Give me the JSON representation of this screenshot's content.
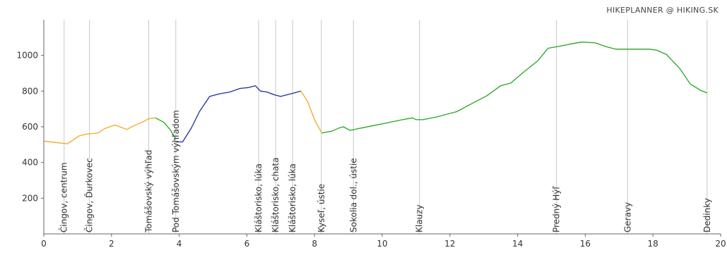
{
  "credit": "HIKEPLANNER @ HIKING.SK",
  "chart_data": {
    "type": "line",
    "title": "",
    "xlabel": "",
    "ylabel": "",
    "xlim": [
      0,
      20
    ],
    "ylim": [
      0,
      1200
    ],
    "x_ticks": [
      0,
      2,
      4,
      6,
      8,
      10,
      12,
      14,
      16,
      18,
      20
    ],
    "y_ticks": [
      200,
      400,
      600,
      800,
      1000
    ],
    "grid": false,
    "legend": "none",
    "colors": {
      "orange": "#f5a623",
      "blue": "#1f2f9e",
      "green": "#22a81f"
    },
    "series": [
      {
        "color": "orange",
        "points": [
          [
            0,
            520
          ],
          [
            0.35,
            512
          ],
          [
            0.7,
            505
          ],
          [
            0.9,
            530
          ],
          [
            1.05,
            550
          ],
          [
            1.3,
            560
          ],
          [
            1.6,
            565
          ],
          [
            1.8,
            590
          ],
          [
            2.1,
            610
          ],
          [
            2.25,
            600
          ],
          [
            2.45,
            585
          ],
          [
            2.65,
            605
          ],
          [
            2.9,
            625
          ],
          [
            3.1,
            645
          ],
          [
            3.3,
            650
          ]
        ]
      },
      {
        "color": "green",
        "points": [
          [
            3.3,
            650
          ],
          [
            3.55,
            625
          ],
          [
            3.75,
            580
          ],
          [
            3.9,
            530
          ]
        ]
      },
      {
        "color": "blue",
        "points": [
          [
            3.9,
            515
          ],
          [
            4.1,
            515
          ],
          [
            4.35,
            590
          ],
          [
            4.6,
            685
          ],
          [
            4.9,
            770
          ],
          [
            5.2,
            785
          ],
          [
            5.5,
            795
          ],
          [
            5.8,
            815
          ],
          [
            6.05,
            820
          ],
          [
            6.25,
            830
          ],
          [
            6.4,
            800
          ],
          [
            6.6,
            795
          ],
          [
            6.8,
            780
          ],
          [
            7.0,
            770
          ],
          [
            7.2,
            780
          ],
          [
            7.4,
            790
          ],
          [
            7.6,
            800
          ]
        ]
      },
      {
        "color": "orange",
        "points": [
          [
            7.6,
            800
          ],
          [
            7.8,
            740
          ],
          [
            8.0,
            640
          ],
          [
            8.2,
            570
          ]
        ]
      },
      {
        "color": "green",
        "points": [
          [
            8.2,
            565
          ],
          [
            8.5,
            575
          ],
          [
            8.75,
            595
          ],
          [
            8.85,
            600
          ],
          [
            9.05,
            580
          ],
          [
            9.3,
            590
          ],
          [
            9.7,
            605
          ],
          [
            10.1,
            620
          ],
          [
            10.6,
            640
          ],
          [
            10.9,
            650
          ],
          [
            11.0,
            640
          ],
          [
            11.2,
            640
          ],
          [
            11.6,
            655
          ],
          [
            12.2,
            685
          ],
          [
            12.6,
            725
          ],
          [
            13.1,
            775
          ],
          [
            13.5,
            830
          ],
          [
            13.8,
            845
          ],
          [
            14.2,
            910
          ],
          [
            14.6,
            970
          ],
          [
            14.9,
            1040
          ],
          [
            15.2,
            1050
          ],
          [
            15.6,
            1065
          ],
          [
            15.9,
            1075
          ],
          [
            16.3,
            1070
          ],
          [
            16.6,
            1050
          ],
          [
            16.9,
            1035
          ],
          [
            17.3,
            1035
          ],
          [
            17.6,
            1035
          ],
          [
            17.9,
            1035
          ],
          [
            18.1,
            1030
          ],
          [
            18.4,
            1005
          ],
          [
            18.8,
            925
          ],
          [
            19.1,
            840
          ],
          [
            19.4,
            805
          ],
          [
            19.6,
            790
          ]
        ]
      }
    ],
    "waypoints": [
      {
        "x": 0.6,
        "label": "Čingov, centrum"
      },
      {
        "x": 1.35,
        "label": "Čingov, Ďurkovec"
      },
      {
        "x": 3.1,
        "label": "Tomášovský výhľad"
      },
      {
        "x": 3.9,
        "label": "Pod Tomášovským výhľadom"
      },
      {
        "x": 6.35,
        "label": "Kláštorisko, lúka"
      },
      {
        "x": 6.85,
        "label": "Kláštorisko, chata"
      },
      {
        "x": 7.35,
        "label": "Kláštorisko, lúka"
      },
      {
        "x": 8.2,
        "label": "Kyseľ, ústie"
      },
      {
        "x": 9.15,
        "label": "Sokolia dol., ústie"
      },
      {
        "x": 11.1,
        "label": "Klauzy"
      },
      {
        "x": 15.15,
        "label": "Predný Hýľ"
      },
      {
        "x": 17.25,
        "label": "Geravy"
      },
      {
        "x": 19.6,
        "label": "Dedinky"
      }
    ]
  }
}
